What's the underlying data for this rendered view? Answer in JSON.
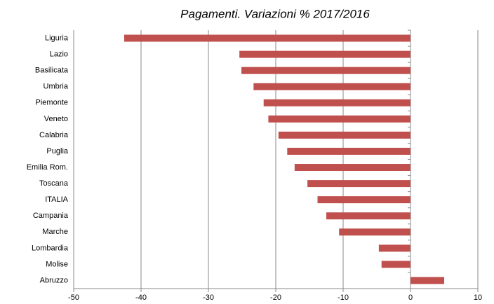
{
  "chart_data": {
    "type": "bar",
    "orientation": "horizontal",
    "title": "Pagamenti. Variazioni % 2017/2016",
    "categories": [
      "Liguria",
      "Lazio",
      "Basilicata",
      "Umbria",
      "Piemonte",
      "Veneto",
      "Calabria",
      "Puglia",
      "Emilia Rom.",
      "Toscana",
      "ITALIA",
      "Campania",
      "Marche",
      "Lombardia",
      "Molise",
      "Abruzzo"
    ],
    "values": [
      -42.5,
      -25.4,
      -25.1,
      -23.3,
      -21.8,
      -21.1,
      -19.6,
      -18.3,
      -17.2,
      -15.3,
      -13.8,
      -12.5,
      -10.6,
      -4.7,
      -4.3,
      5.0
    ],
    "color": "#c0504d",
    "xlim": [
      -50,
      10
    ],
    "xticks": [
      -50,
      -40,
      -30,
      -20,
      -10,
      0,
      10
    ],
    "grid": true
  }
}
